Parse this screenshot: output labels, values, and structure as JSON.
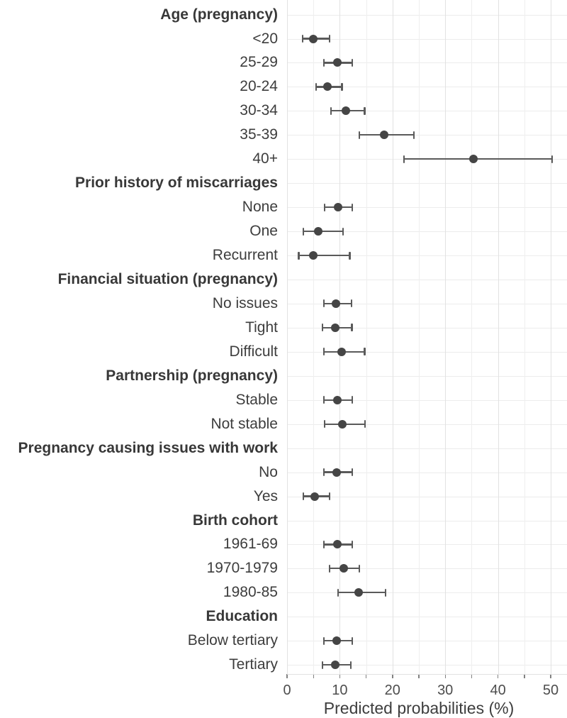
{
  "chart_data": {
    "type": "scatter",
    "style": "forest-plot-dots-with-error-bars",
    "title": "",
    "xlabel": "Predicted probabilities (%)",
    "ylabel": "",
    "xlim": [
      0,
      53
    ],
    "x_major_tick_labels": [
      "0",
      "10",
      "20",
      "30",
      "40",
      "50"
    ],
    "x_major_tick_values": [
      0,
      10,
      20,
      30,
      40,
      50
    ],
    "x_minor_tick_step": 5,
    "grid": "on",
    "legend": "none",
    "rows": [
      {
        "kind": "header",
        "label": "Age (pregnancy)"
      },
      {
        "kind": "item",
        "label": "<20",
        "est": 5.0,
        "lo": 3.0,
        "hi": 8.1
      },
      {
        "kind": "item",
        "label": "25-29",
        "est": 9.6,
        "lo": 7.0,
        "hi": 12.4
      },
      {
        "kind": "item",
        "label": "20-24",
        "est": 7.7,
        "lo": 5.5,
        "hi": 10.4
      },
      {
        "kind": "item",
        "label": "30-34",
        "est": 11.2,
        "lo": 8.3,
        "hi": 14.7
      },
      {
        "kind": "item",
        "label": "35-39",
        "est": 18.4,
        "lo": 13.7,
        "hi": 24.1
      },
      {
        "kind": "item",
        "label": "40+",
        "est": 35.3,
        "lo": 22.2,
        "hi": 50.3
      },
      {
        "kind": "header",
        "label": "Prior history of miscarriages"
      },
      {
        "kind": "item",
        "label": "None",
        "est": 9.7,
        "lo": 7.1,
        "hi": 12.4
      },
      {
        "kind": "item",
        "label": "One",
        "est": 5.9,
        "lo": 3.1,
        "hi": 10.6
      },
      {
        "kind": "item",
        "label": "Recurrent",
        "est": 5.0,
        "lo": 2.2,
        "hi": 11.9
      },
      {
        "kind": "header",
        "label": "Financial situation (pregnancy)"
      },
      {
        "kind": "item",
        "label": "No issues",
        "est": 9.3,
        "lo": 7.0,
        "hi": 12.2
      },
      {
        "kind": "item",
        "label": "Tight",
        "est": 9.2,
        "lo": 6.7,
        "hi": 12.3
      },
      {
        "kind": "item",
        "label": "Difficult",
        "est": 10.3,
        "lo": 7.0,
        "hi": 14.7
      },
      {
        "kind": "header",
        "label": "Partnership (pregnancy)"
      },
      {
        "kind": "item",
        "label": "Stable",
        "est": 9.6,
        "lo": 7.0,
        "hi": 12.4
      },
      {
        "kind": "item",
        "label": "Not stable",
        "est": 10.5,
        "lo": 7.1,
        "hi": 14.8
      },
      {
        "kind": "header",
        "label": "Pregnancy causing issues with work"
      },
      {
        "kind": "item",
        "label": "No",
        "est": 9.4,
        "lo": 7.0,
        "hi": 12.4
      },
      {
        "kind": "item",
        "label": "Yes",
        "est": 5.2,
        "lo": 3.1,
        "hi": 8.1
      },
      {
        "kind": "header",
        "label": "Birth cohort"
      },
      {
        "kind": "item",
        "label": "1961-69",
        "est": 9.6,
        "lo": 7.0,
        "hi": 12.4
      },
      {
        "kind": "item",
        "label": "1970-1979",
        "est": 10.8,
        "lo": 8.1,
        "hi": 13.7
      },
      {
        "kind": "item",
        "label": "1980-85",
        "est": 13.6,
        "lo": 9.7,
        "hi": 18.7
      },
      {
        "kind": "header",
        "label": "Education"
      },
      {
        "kind": "item",
        "label": "Below tertiary",
        "est": 9.4,
        "lo": 7.0,
        "hi": 12.4
      },
      {
        "kind": "item",
        "label": "Tertiary",
        "est": 9.2,
        "lo": 6.7,
        "hi": 12.1
      }
    ]
  },
  "colors": {
    "background": "#ffffff",
    "dot": "#454545",
    "error_bar": "#5a5a5a",
    "grid_major": "#e2e2e2",
    "grid_minor": "#efefef",
    "grid_row": "#ececec",
    "tick_mark": "#828282",
    "tick_label_text": "#4d4d4d",
    "label_text": "#3d3d3d",
    "header_text": "#383838"
  }
}
